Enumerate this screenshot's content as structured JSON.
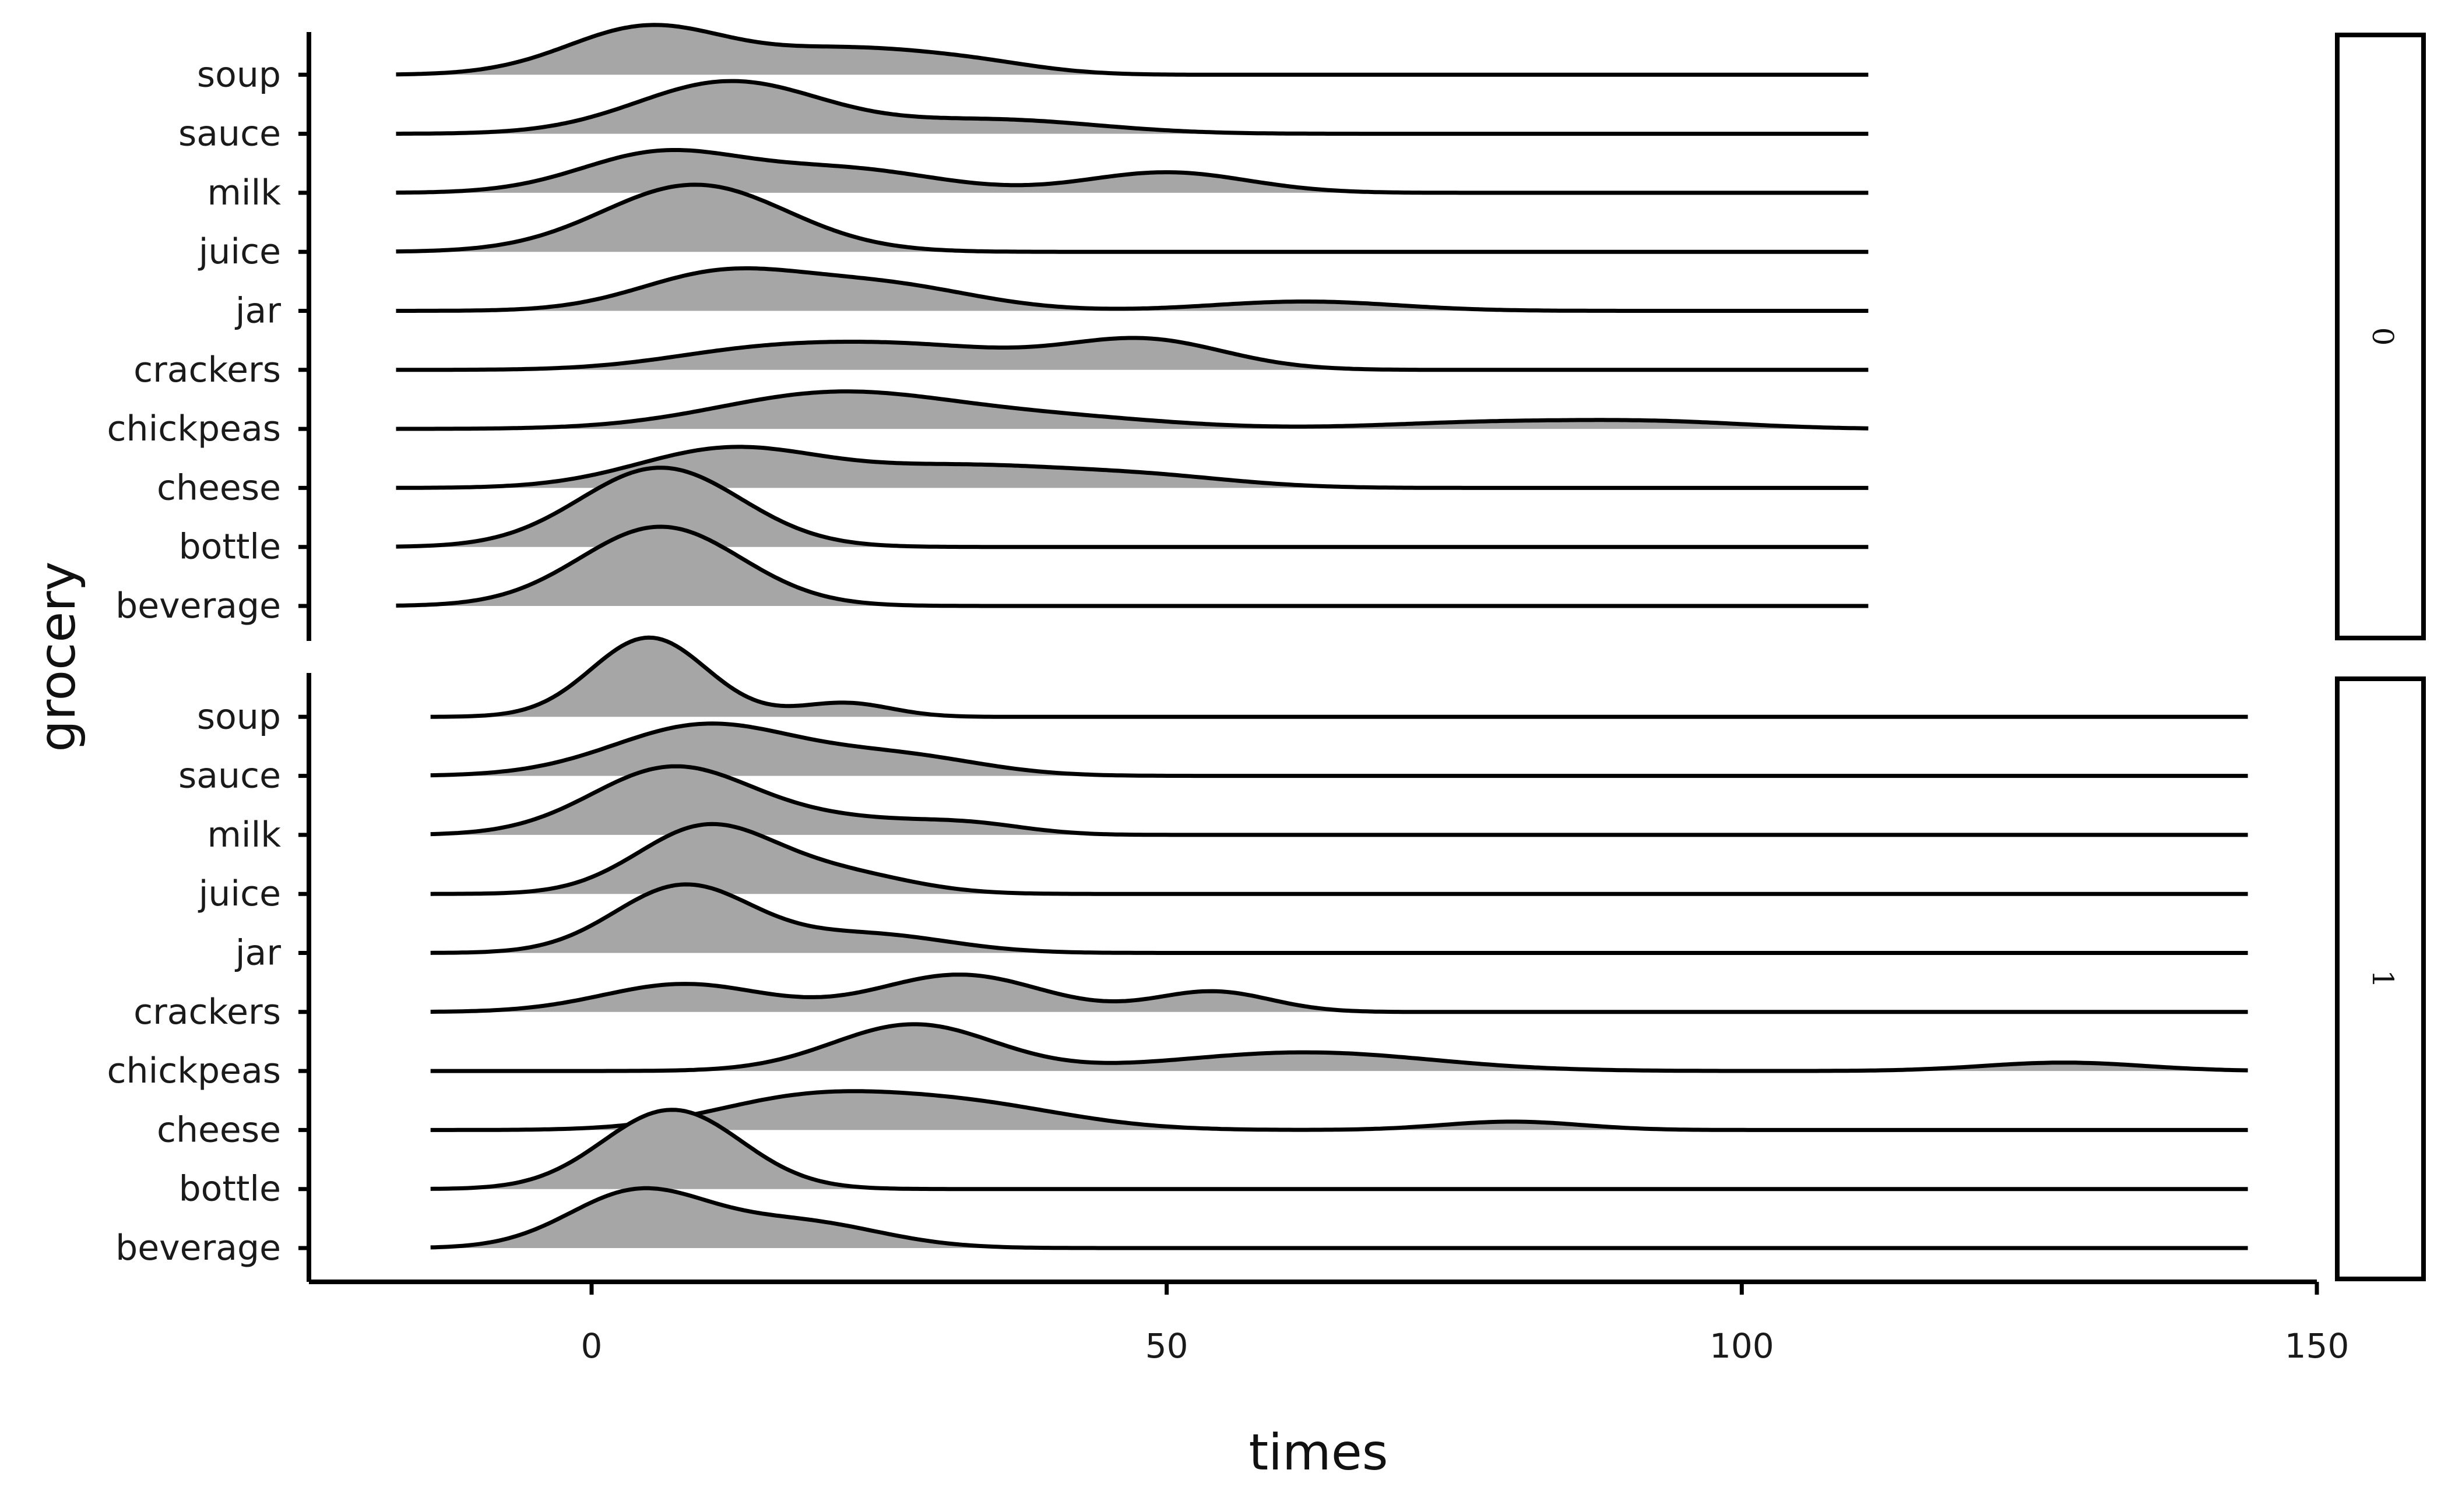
{
  "chart_data": {
    "type": "ridgeline",
    "xlabel": "times",
    "ylabel": "grocery",
    "xlim": [
      -25,
      152
    ],
    "x_ticks": [
      0,
      50,
      100,
      150
    ],
    "categories": [
      "beverage",
      "bottle",
      "cheese",
      "chickpeas",
      "crackers",
      "jar",
      "juice",
      "milk",
      "sauce",
      "soup"
    ],
    "fill_color": "#a6a6a6",
    "line_color": "#000000",
    "grid": false,
    "panels": [
      {
        "strip_label": "0",
        "x_range": [
          -17,
          111
        ],
        "series": [
          {
            "name": "beverage",
            "peaks": [
              [
                6,
                0.85,
                7
              ]
            ]
          },
          {
            "name": "bottle",
            "peaks": [
              [
                6,
                0.85,
                7
              ]
            ]
          },
          {
            "name": "cheese",
            "peaks": [
              [
                12,
                0.42,
                8
              ],
              [
                32,
                0.22,
                9
              ],
              [
                48,
                0.12,
                8
              ]
            ]
          },
          {
            "name": "chickpeas",
            "peaks": [
              [
                21,
                0.38,
                10
              ],
              [
                40,
                0.12,
                10
              ],
              [
                78,
                0.07,
                9
              ],
              [
                93,
                0.07,
                8
              ]
            ]
          },
          {
            "name": "crackers",
            "peaks": [
              [
                14,
                0.18,
                8
              ],
              [
                28,
                0.24,
                9
              ],
              [
                48,
                0.32,
                7
              ]
            ]
          },
          {
            "name": "jar",
            "peaks": [
              [
                11,
                0.38,
                7
              ],
              [
                25,
                0.28,
                8
              ],
              [
                62,
                0.1,
                8
              ]
            ]
          },
          {
            "name": "juice",
            "peaks": [
              [
                9,
                0.72,
                8
              ]
            ]
          },
          {
            "name": "milk",
            "peaks": [
              [
                6,
                0.42,
                7
              ],
              [
                22,
                0.25,
                8
              ],
              [
                50,
                0.22,
                7
              ]
            ]
          },
          {
            "name": "sauce",
            "peaks": [
              [
                12,
                0.56,
                8
              ],
              [
                35,
                0.15,
                9
              ]
            ]
          },
          {
            "name": "soup",
            "peaks": [
              [
                5,
                0.52,
                7
              ],
              [
                22,
                0.25,
                7
              ],
              [
                33,
                0.12,
                6
              ]
            ]
          }
        ]
      },
      {
        "strip_label": "1",
        "x_range": [
          -14,
          144
        ],
        "series": [
          {
            "name": "beverage",
            "peaks": [
              [
                4,
                0.6,
                6
              ],
              [
                18,
                0.28,
                7
              ]
            ]
          },
          {
            "name": "bottle",
            "peaks": [
              [
                7,
                0.85,
                6
              ]
            ]
          },
          {
            "name": "cheese",
            "peaks": [
              [
                18,
                0.3,
                8
              ],
              [
                32,
                0.28,
                9
              ],
              [
                80,
                0.09,
                6
              ]
            ]
          },
          {
            "name": "chickpeas",
            "peaks": [
              [
                28,
                0.5,
                7
              ],
              [
                62,
                0.2,
                11
              ],
              [
                128,
                0.09,
                7
              ]
            ]
          },
          {
            "name": "crackers",
            "peaks": [
              [
                8,
                0.3,
                7
              ],
              [
                32,
                0.4,
                7
              ],
              [
                54,
                0.22,
                5
              ]
            ]
          },
          {
            "name": "jar",
            "peaks": [
              [
                8,
                0.72,
                6
              ],
              [
                24,
                0.2,
                7
              ]
            ]
          },
          {
            "name": "juice",
            "peaks": [
              [
                10,
                0.72,
                6
              ],
              [
                22,
                0.2,
                6
              ]
            ]
          },
          {
            "name": "milk",
            "peaks": [
              [
                7,
                0.72,
                7
              ],
              [
                22,
                0.15,
                7
              ],
              [
                33,
                0.1,
                5
              ]
            ]
          },
          {
            "name": "sauce",
            "peaks": [
              [
                10,
                0.55,
                8
              ],
              [
                27,
                0.2,
                7
              ]
            ]
          },
          {
            "name": "soup",
            "peaks": [
              [
                5,
                0.85,
                5
              ],
              [
                22,
                0.15,
                4
              ]
            ]
          }
        ]
      }
    ]
  }
}
